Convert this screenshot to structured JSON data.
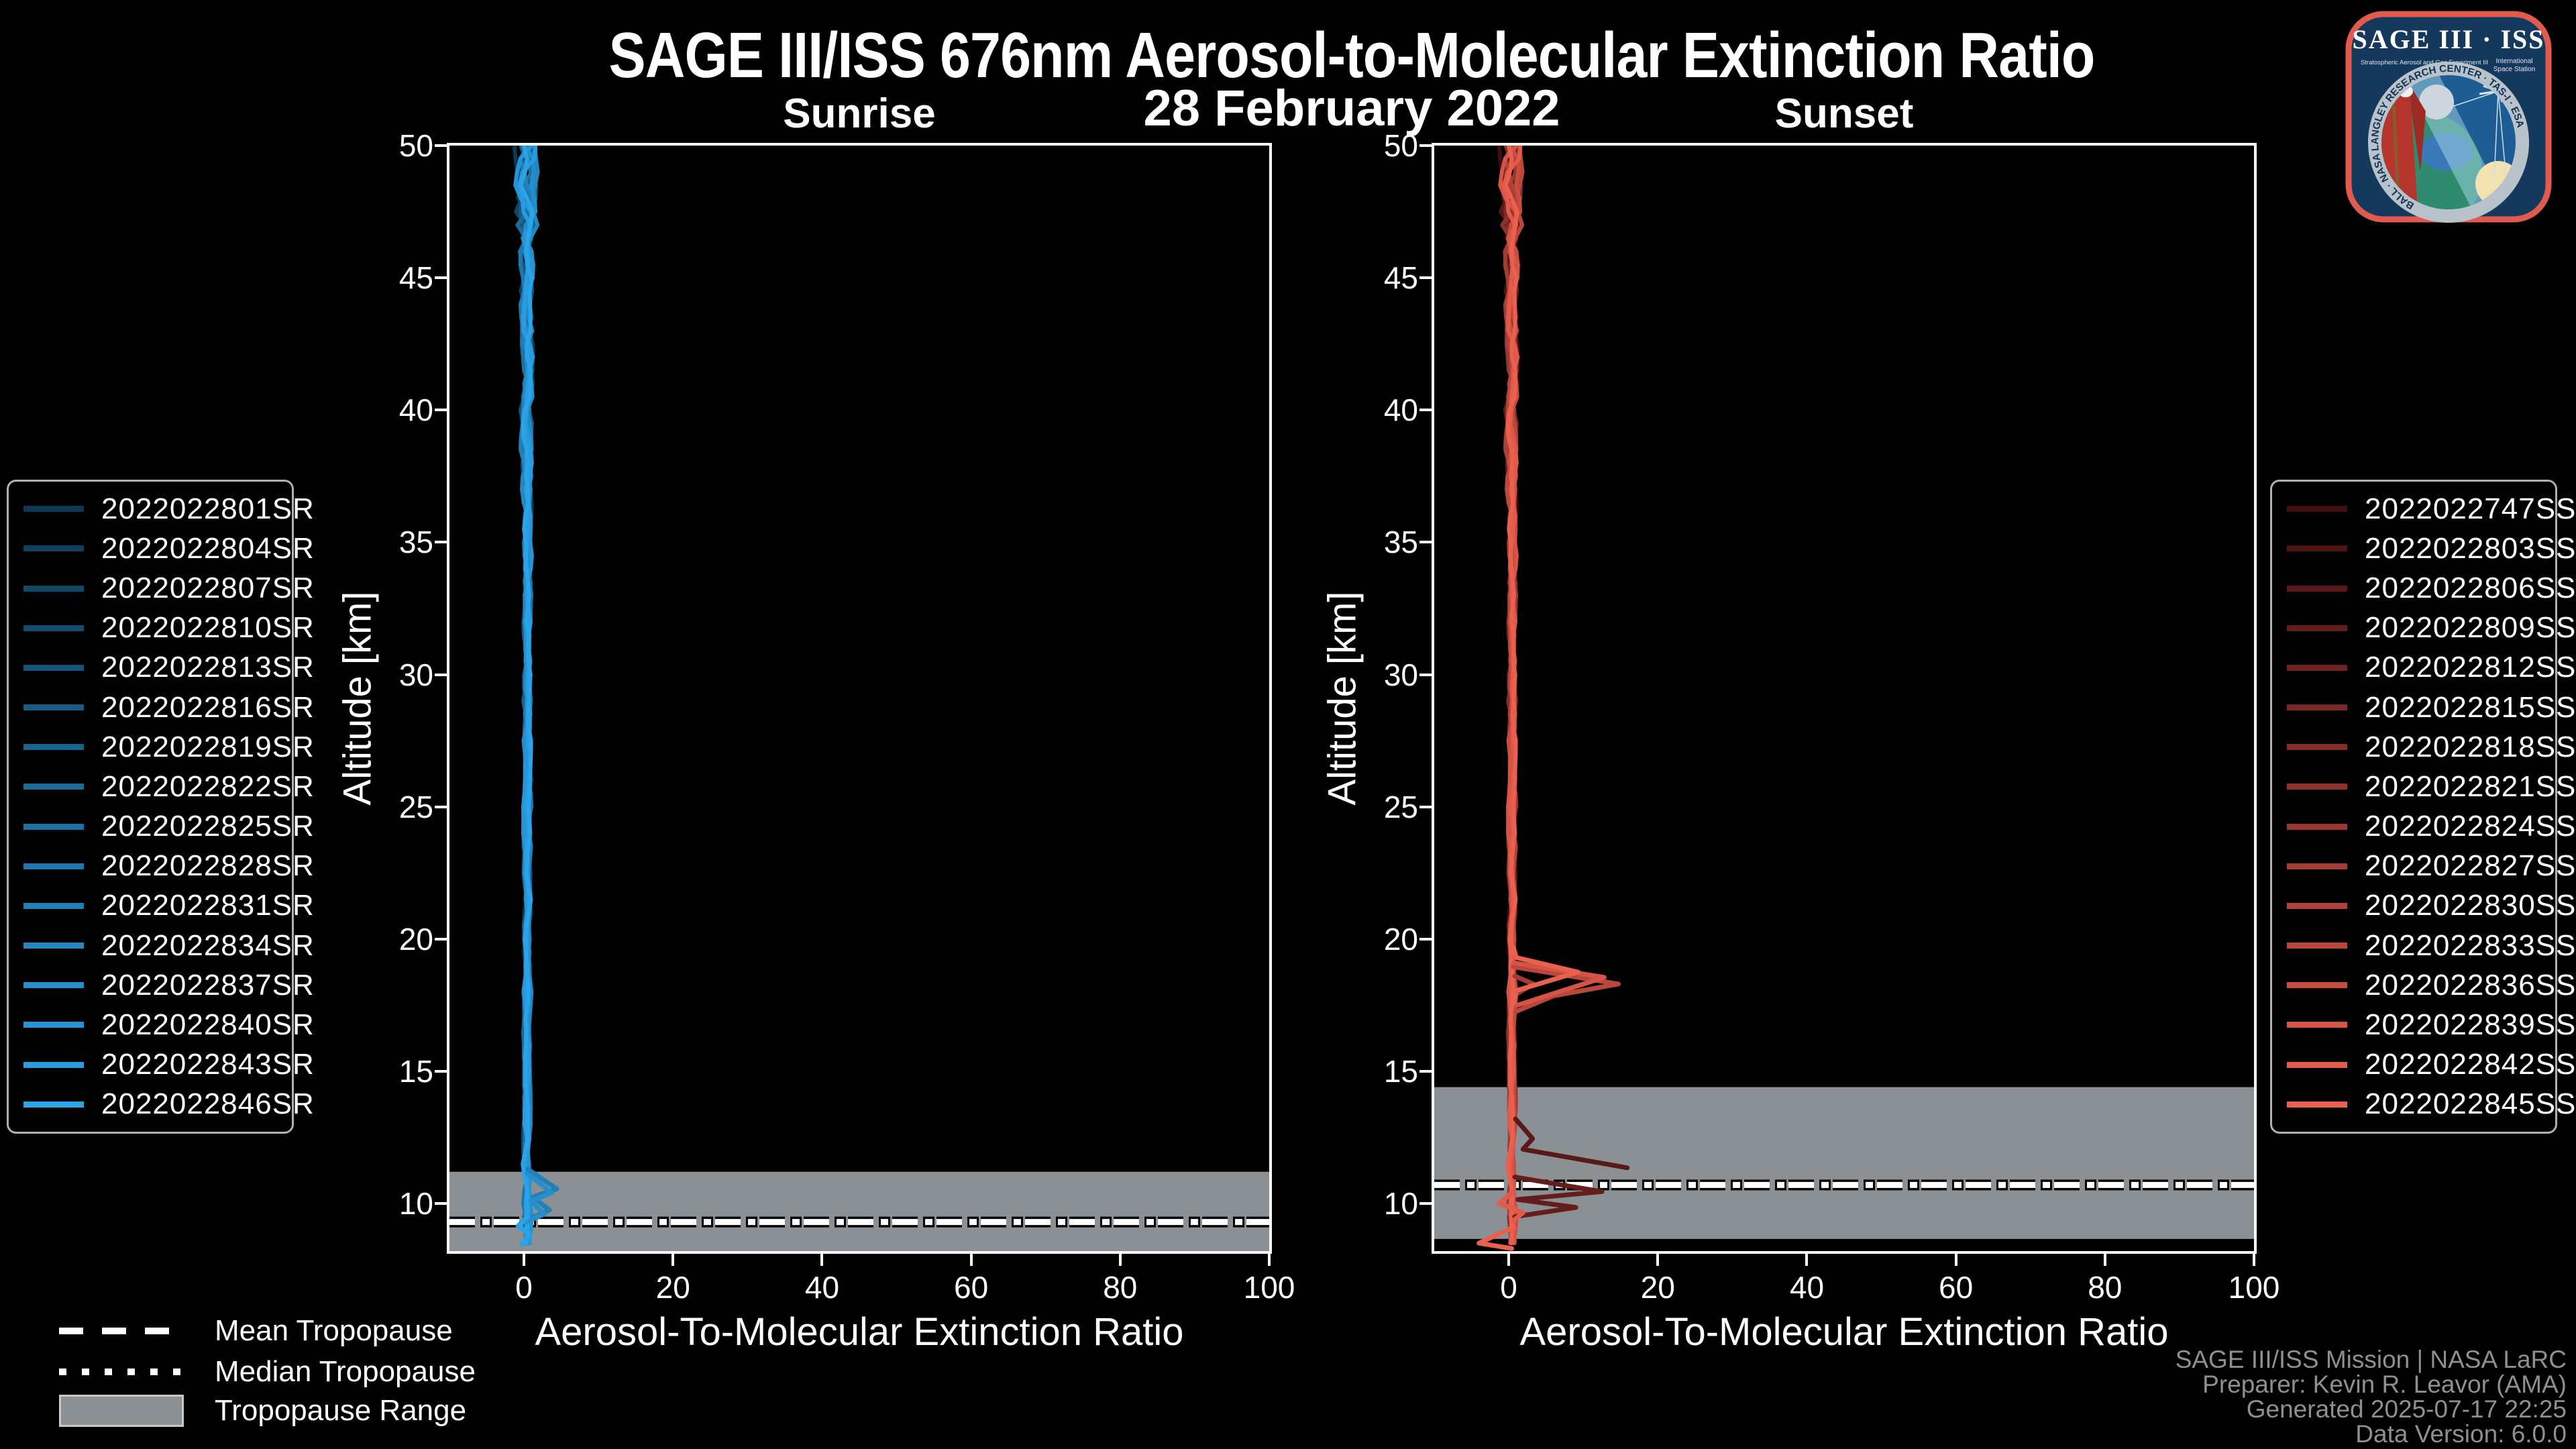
{
  "header": {
    "title": "SAGE III/ISS 676nm Aerosol-to-Molecular Extinction Ratio",
    "subtitle": "28 February 2022"
  },
  "logo": {
    "title": "SAGE III · ISS",
    "tagline_left": "Stratospheric Aerosol and Gas Experiment III",
    "tagline_right_1": "International",
    "tagline_right_2": "Space Station",
    "ring_text": "BALL · NASA LANGLEY RESEARCH CENTER · TAS-I · ESA",
    "border_color": "#e05a4d",
    "patch_color": "#14395c"
  },
  "trop_legend": {
    "mean": "Mean Tropopause",
    "median": "Median Tropopause",
    "range": "Tropopause Range",
    "range_color": "#8b9094"
  },
  "footer": {
    "lines": [
      "SAGE III/ISS Mission | NASA LaRC",
      "Preparer: Kevin R. Leavor (AMA)",
      "Generated 2025-07-17 22:25",
      "Data Version: 6.0.0"
    ]
  },
  "chart_data": [
    {
      "type": "line",
      "title": "Sunrise",
      "xlabel": "Aerosol-To-Molecular Extinction Ratio",
      "ylabel": "Altitude [km]",
      "xlim": [
        -10,
        100
      ],
      "ylim": [
        8.2,
        50
      ],
      "xticks": [
        0,
        20,
        40,
        60,
        80,
        100
      ],
      "yticks": [
        10,
        15,
        20,
        25,
        30,
        35,
        40,
        45,
        50
      ],
      "grid": false,
      "legend_position": "outside-left",
      "band_color": "#8b9094",
      "profile_center_x": 0.45,
      "jitter": {
        "base_amp": 0.45,
        "mid_gain": 0.045,
        "top_gain": 0.12
      },
      "tropopause": {
        "mean_km": 9.3,
        "median_km": 9.3,
        "range_top_km": 11.2,
        "range_bottom_km": 8.2
      },
      "series": [
        {
          "name": "2022022801SR",
          "color": "#0d3952",
          "end_alt": 9.0
        },
        {
          "name": "2022022804SR",
          "color": "#0f405c",
          "end_alt": 9.0
        },
        {
          "name": "2022022807SR",
          "color": "#114767",
          "end_alt": 8.7
        },
        {
          "name": "2022022810SR",
          "color": "#134e71",
          "end_alt": 8.35
        },
        {
          "name": "2022022813SR",
          "color": "#15557b",
          "end_alt": 8.35
        },
        {
          "name": "2022022816SR",
          "color": "#175c85",
          "end_alt": 8.35
        },
        {
          "name": "2022022819SR",
          "color": "#19638f",
          "end_alt": 8.35
        },
        {
          "name": "2022022822SR",
          "color": "#1b6a99",
          "end_alt": 8.35
        },
        {
          "name": "2022022825SR",
          "color": "#1d71a3",
          "end_alt": 8.35
        },
        {
          "name": "2022022828SR",
          "color": "#1f78ad",
          "end_alt": 8.35
        },
        {
          "name": "2022022831SR",
          "color": "#2180b7",
          "end_alt": 8.35
        },
        {
          "name": "2022022834SR",
          "color": "#2387c1",
          "end_alt": 8.35
        },
        {
          "name": "2022022837SR",
          "color": "#258ecb",
          "end_alt": 8.35
        },
        {
          "name": "2022022840SR",
          "color": "#2795d5",
          "end_alt": 8.35
        },
        {
          "name": "2022022843SR",
          "color": "#299cdf",
          "end_alt": 8.35
        },
        {
          "name": "2022022846SR",
          "color": "#2ba3e8",
          "end_alt": 8.35
        }
      ],
      "features": [
        {
          "series": 10,
          "points": [
            [
              0.5,
              11.3
            ],
            [
              4.4,
              10.55
            ],
            [
              1.2,
              10.25
            ],
            [
              3.4,
              9.75
            ],
            [
              0.5,
              9.4
            ]
          ]
        },
        {
          "series": 12,
          "points": [
            [
              0.4,
              11.15
            ],
            [
              3.7,
              10.4
            ],
            [
              0.9,
              10.1
            ],
            [
              2.7,
              9.6
            ],
            [
              0.3,
              9.3
            ]
          ]
        },
        {
          "series": 15,
          "points": [
            [
              0.5,
              9.5
            ],
            [
              -0.8,
              9.15
            ],
            [
              0.7,
              8.85
            ],
            [
              -0.3,
              8.45
            ]
          ]
        }
      ]
    },
    {
      "type": "line",
      "title": "Sunset",
      "xlabel": "Aerosol-To-Molecular Extinction Ratio",
      "ylabel": "Altitude [km]",
      "xlim": [
        -10,
        100
      ],
      "ylim": [
        8.2,
        50
      ],
      "xticks": [
        0,
        20,
        40,
        60,
        80,
        100
      ],
      "yticks": [
        10,
        15,
        20,
        25,
        30,
        35,
        40,
        45,
        50
      ],
      "grid": false,
      "legend_position": "outside-right",
      "band_color": "#8b9094",
      "profile_center_x": 0.45,
      "jitter": {
        "base_amp": 0.45,
        "mid_gain": 0.045,
        "top_gain": 0.12
      },
      "tropopause": {
        "mean_km": 10.7,
        "median_km": 10.7,
        "range_top_km": 14.4,
        "range_bottom_km": 8.66
      },
      "series": [
        {
          "name": "2022022747SS",
          "color": "#420f10",
          "end_alt": 11.5
        },
        {
          "name": "2022022803SS",
          "color": "#4d1414",
          "end_alt": 10.4
        },
        {
          "name": "2022022806SS",
          "color": "#581918",
          "end_alt": 13.2
        },
        {
          "name": "2022022809SS",
          "color": "#631e1c",
          "end_alt": 11.0
        },
        {
          "name": "2022022812SS",
          "color": "#6e2320",
          "end_alt": 8.3
        },
        {
          "name": "2022022815SS",
          "color": "#792824",
          "end_alt": 8.3
        },
        {
          "name": "2022022818SS",
          "color": "#842d28",
          "end_alt": 8.3
        },
        {
          "name": "2022022821SS",
          "color": "#8f322c",
          "end_alt": 8.3
        },
        {
          "name": "2022022824SS",
          "color": "#9a3730",
          "end_alt": 8.3
        },
        {
          "name": "2022022827SS",
          "color": "#a53c34",
          "end_alt": 8.3
        },
        {
          "name": "2022022830SS",
          "color": "#b04138",
          "end_alt": 8.3
        },
        {
          "name": "2022022833SS",
          "color": "#bb463c",
          "end_alt": 8.3
        },
        {
          "name": "2022022836SS",
          "color": "#c84d40",
          "end_alt": 8.3
        },
        {
          "name": "2022022839SS",
          "color": "#d55445",
          "end_alt": 8.3
        },
        {
          "name": "2022022842SS",
          "color": "#e25b4a",
          "end_alt": 8.3
        },
        {
          "name": "2022022845SS",
          "color": "#ea604e",
          "end_alt": 8.3
        }
      ],
      "features": [
        {
          "series": 2,
          "points": [
            [
              0.9,
              13.2
            ],
            [
              3.2,
              12.45
            ],
            [
              1.9,
              12.05
            ],
            [
              15.9,
              11.35
            ]
          ]
        },
        {
          "series": 3,
          "points": [
            [
              0.8,
              11.0
            ],
            [
              12.5,
              10.45
            ],
            [
              1.2,
              10.15
            ],
            [
              9.0,
              9.85
            ],
            [
              0.8,
              9.5
            ]
          ]
        },
        {
          "series": 9,
          "points": [
            [
              0.8,
              18.6
            ],
            [
              3.3,
              18.3
            ],
            [
              0.9,
              17.9
            ]
          ]
        },
        {
          "series": 11,
          "points": [
            [
              0.6,
              18.95
            ],
            [
              14.7,
              18.3
            ],
            [
              6.0,
              17.85
            ],
            [
              0.9,
              17.25
            ]
          ]
        },
        {
          "series": 13,
          "points": [
            [
              0.7,
              19.1
            ],
            [
              12.8,
              18.55
            ],
            [
              1.2,
              17.5
            ]
          ]
        },
        {
          "series": 14,
          "points": [
            [
              0.6,
              10.45
            ],
            [
              -1.3,
              10.0
            ],
            [
              1.9,
              9.65
            ],
            [
              0.6,
              9.35
            ]
          ]
        },
        {
          "series": 15,
          "points": [
            [
              0.6,
              19.7
            ],
            [
              1.0,
              19.3
            ],
            [
              9.3,
              18.75
            ],
            [
              1.0,
              18.05
            ],
            [
              0.7,
              17.6
            ]
          ]
        },
        {
          "series": 15,
          "points": [
            [
              0.6,
              9.1
            ],
            [
              -4.0,
              8.5
            ],
            [
              0.4,
              8.3
            ]
          ]
        }
      ]
    }
  ]
}
